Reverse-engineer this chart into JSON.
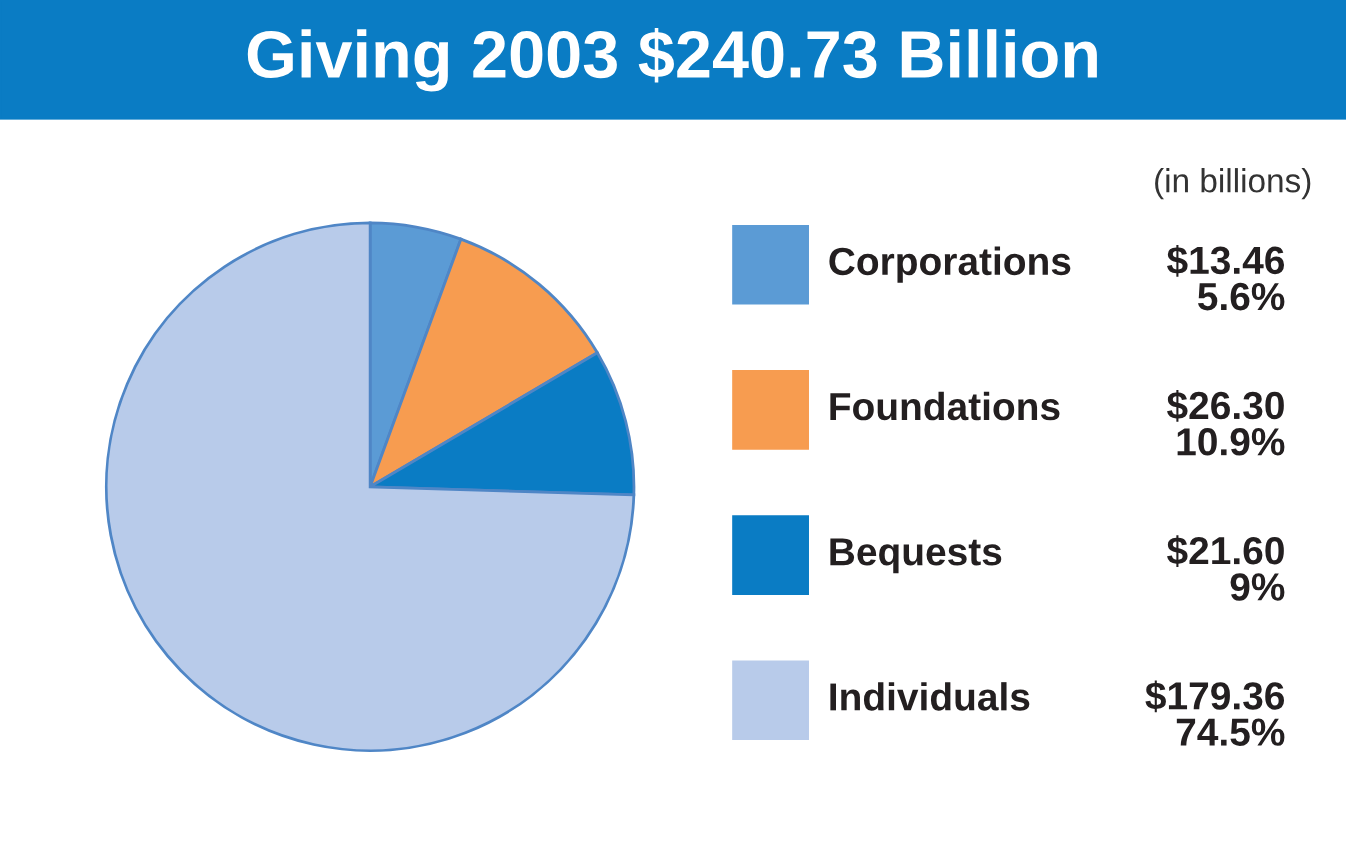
{
  "chart_data": {
    "type": "pie",
    "title": "Giving 2003 $240.73 Billion",
    "annotations": [
      "(in billions)"
    ],
    "categories": [
      "Corporations",
      "Foundations",
      "Bequests",
      "Individuals"
    ],
    "values": [
      13.46,
      26.3,
      21.6,
      179.36
    ],
    "value_labels": [
      "$13.46\n5.6%",
      "$26.30\n10.9%",
      "$21.60\n9%",
      "$179.36\n74.5%"
    ],
    "colors": [
      "#5b9bd5",
      "#f79c50",
      "#0a7cc4",
      "#b8cbea"
    ],
    "legend": "right"
  }
}
